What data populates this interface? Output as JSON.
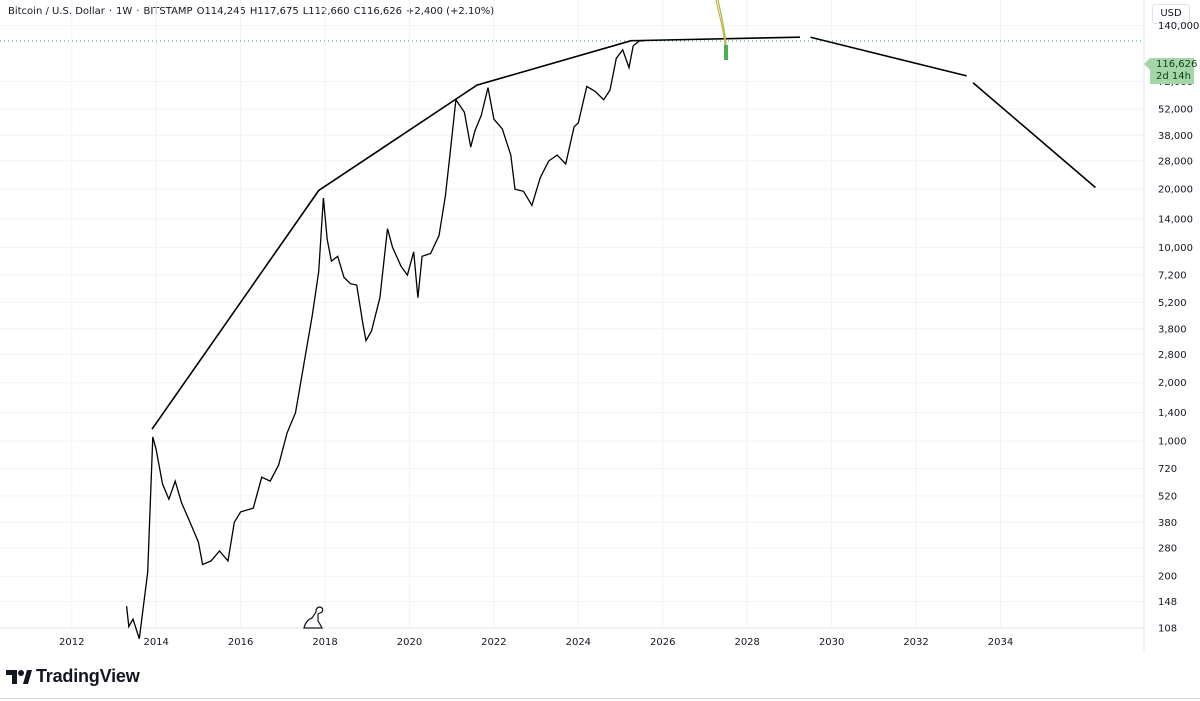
{
  "header": {
    "symbol": "Bitcoin / U.S. Dollar",
    "interval": "1W",
    "exchange": "BITSTAMP",
    "open": "O114,245",
    "high": "H117,675",
    "low": "L112,660",
    "close": "C116,626",
    "change": "+2,400 (+2.10%)",
    "sep": "·"
  },
  "currency_label": "USD",
  "last_price": {
    "value": "116,626",
    "countdown": "2d 14h"
  },
  "brand": {
    "name": "TradingView"
  },
  "colors": {
    "line": "#000000",
    "candles": "#000000",
    "last_price_bg": "#a5d6a7",
    "curve_orange": "#e8a33d",
    "curve_green": "#8bc34a"
  },
  "chart_data": {
    "type": "line",
    "y_scale": "log",
    "y_ticks": [
      "108",
      "148",
      "200",
      "280",
      "380",
      "520",
      "720",
      "1,000",
      "1,400",
      "2,000",
      "2,800",
      "3,800",
      "5,200",
      "7,200",
      "10,000",
      "14,000",
      "20,000",
      "28,000",
      "38,000",
      "52,000",
      "72,000",
      "140,000"
    ],
    "x_ticks": [
      "2012",
      "2014",
      "2016",
      "2018",
      "2020",
      "2022",
      "2024",
      "2026",
      "2028",
      "2030",
      "2032",
      "2034"
    ],
    "xlim": [
      2010.3,
      2037.4
    ],
    "ylim": [
      108,
      190000
    ],
    "price_series": {
      "name": "BTC/USD weekly",
      "x": [
        2013.3,
        2013.35,
        2013.45,
        2013.6,
        2013.8,
        2013.92,
        2014.0,
        2014.15,
        2014.3,
        2014.45,
        2014.6,
        2014.8,
        2015.0,
        2015.1,
        2015.3,
        2015.5,
        2015.7,
        2015.85,
        2016.0,
        2016.3,
        2016.5,
        2016.7,
        2016.9,
        2017.1,
        2017.3,
        2017.5,
        2017.7,
        2017.85,
        2017.96,
        2018.05,
        2018.15,
        2018.3,
        2018.45,
        2018.6,
        2018.75,
        2018.9,
        2018.97,
        2019.1,
        2019.3,
        2019.48,
        2019.6,
        2019.8,
        2019.95,
        2020.1,
        2020.2,
        2020.3,
        2020.5,
        2020.7,
        2020.85,
        2020.95,
        2021.1,
        2021.3,
        2021.45,
        2021.55,
        2021.7,
        2021.86,
        2022.0,
        2022.2,
        2022.4,
        2022.5,
        2022.7,
        2022.9,
        2023.1,
        2023.3,
        2023.5,
        2023.7,
        2023.9,
        2024.0,
        2024.2,
        2024.4,
        2024.6,
        2024.75,
        2024.9,
        2025.05,
        2025.2,
        2025.3,
        2025.45,
        2025.55
      ],
      "values": [
        140,
        110,
        120,
        95,
        210,
        1050,
        900,
        600,
        500,
        620,
        480,
        380,
        300,
        230,
        240,
        270,
        240,
        380,
        430,
        450,
        650,
        620,
        750,
        1100,
        1400,
        2500,
        4500,
        7500,
        18000,
        11000,
        8500,
        9000,
        7000,
        6500,
        6400,
        4000,
        3300,
        3700,
        5500,
        12500,
        10000,
        8000,
        7200,
        9500,
        5500,
        9000,
        9300,
        11500,
        18500,
        29000,
        58000,
        50000,
        33000,
        40000,
        48000,
        67000,
        46000,
        41000,
        30000,
        20000,
        19500,
        16500,
        23000,
        28000,
        30000,
        27000,
        42000,
        44000,
        68000,
        64000,
        58000,
        65000,
        95000,
        105000,
        85000,
        110000,
        117000,
        116626
      ]
    },
    "projection_line": {
      "x": [
        2013.9,
        2017.85,
        2021.6,
        2025.25,
        2029.25
      ],
      "y": [
        1150,
        19700,
        69000,
        117000,
        122000
      ]
    },
    "projection_decline": [
      {
        "x": [
          2029.5,
          2033.2
        ],
        "y": [
          122000,
          77000
        ]
      },
      {
        "x": [
          2033.35,
          2036.25
        ],
        "y": [
          71000,
          20400
        ]
      }
    ],
    "last_price_line": 116626
  }
}
